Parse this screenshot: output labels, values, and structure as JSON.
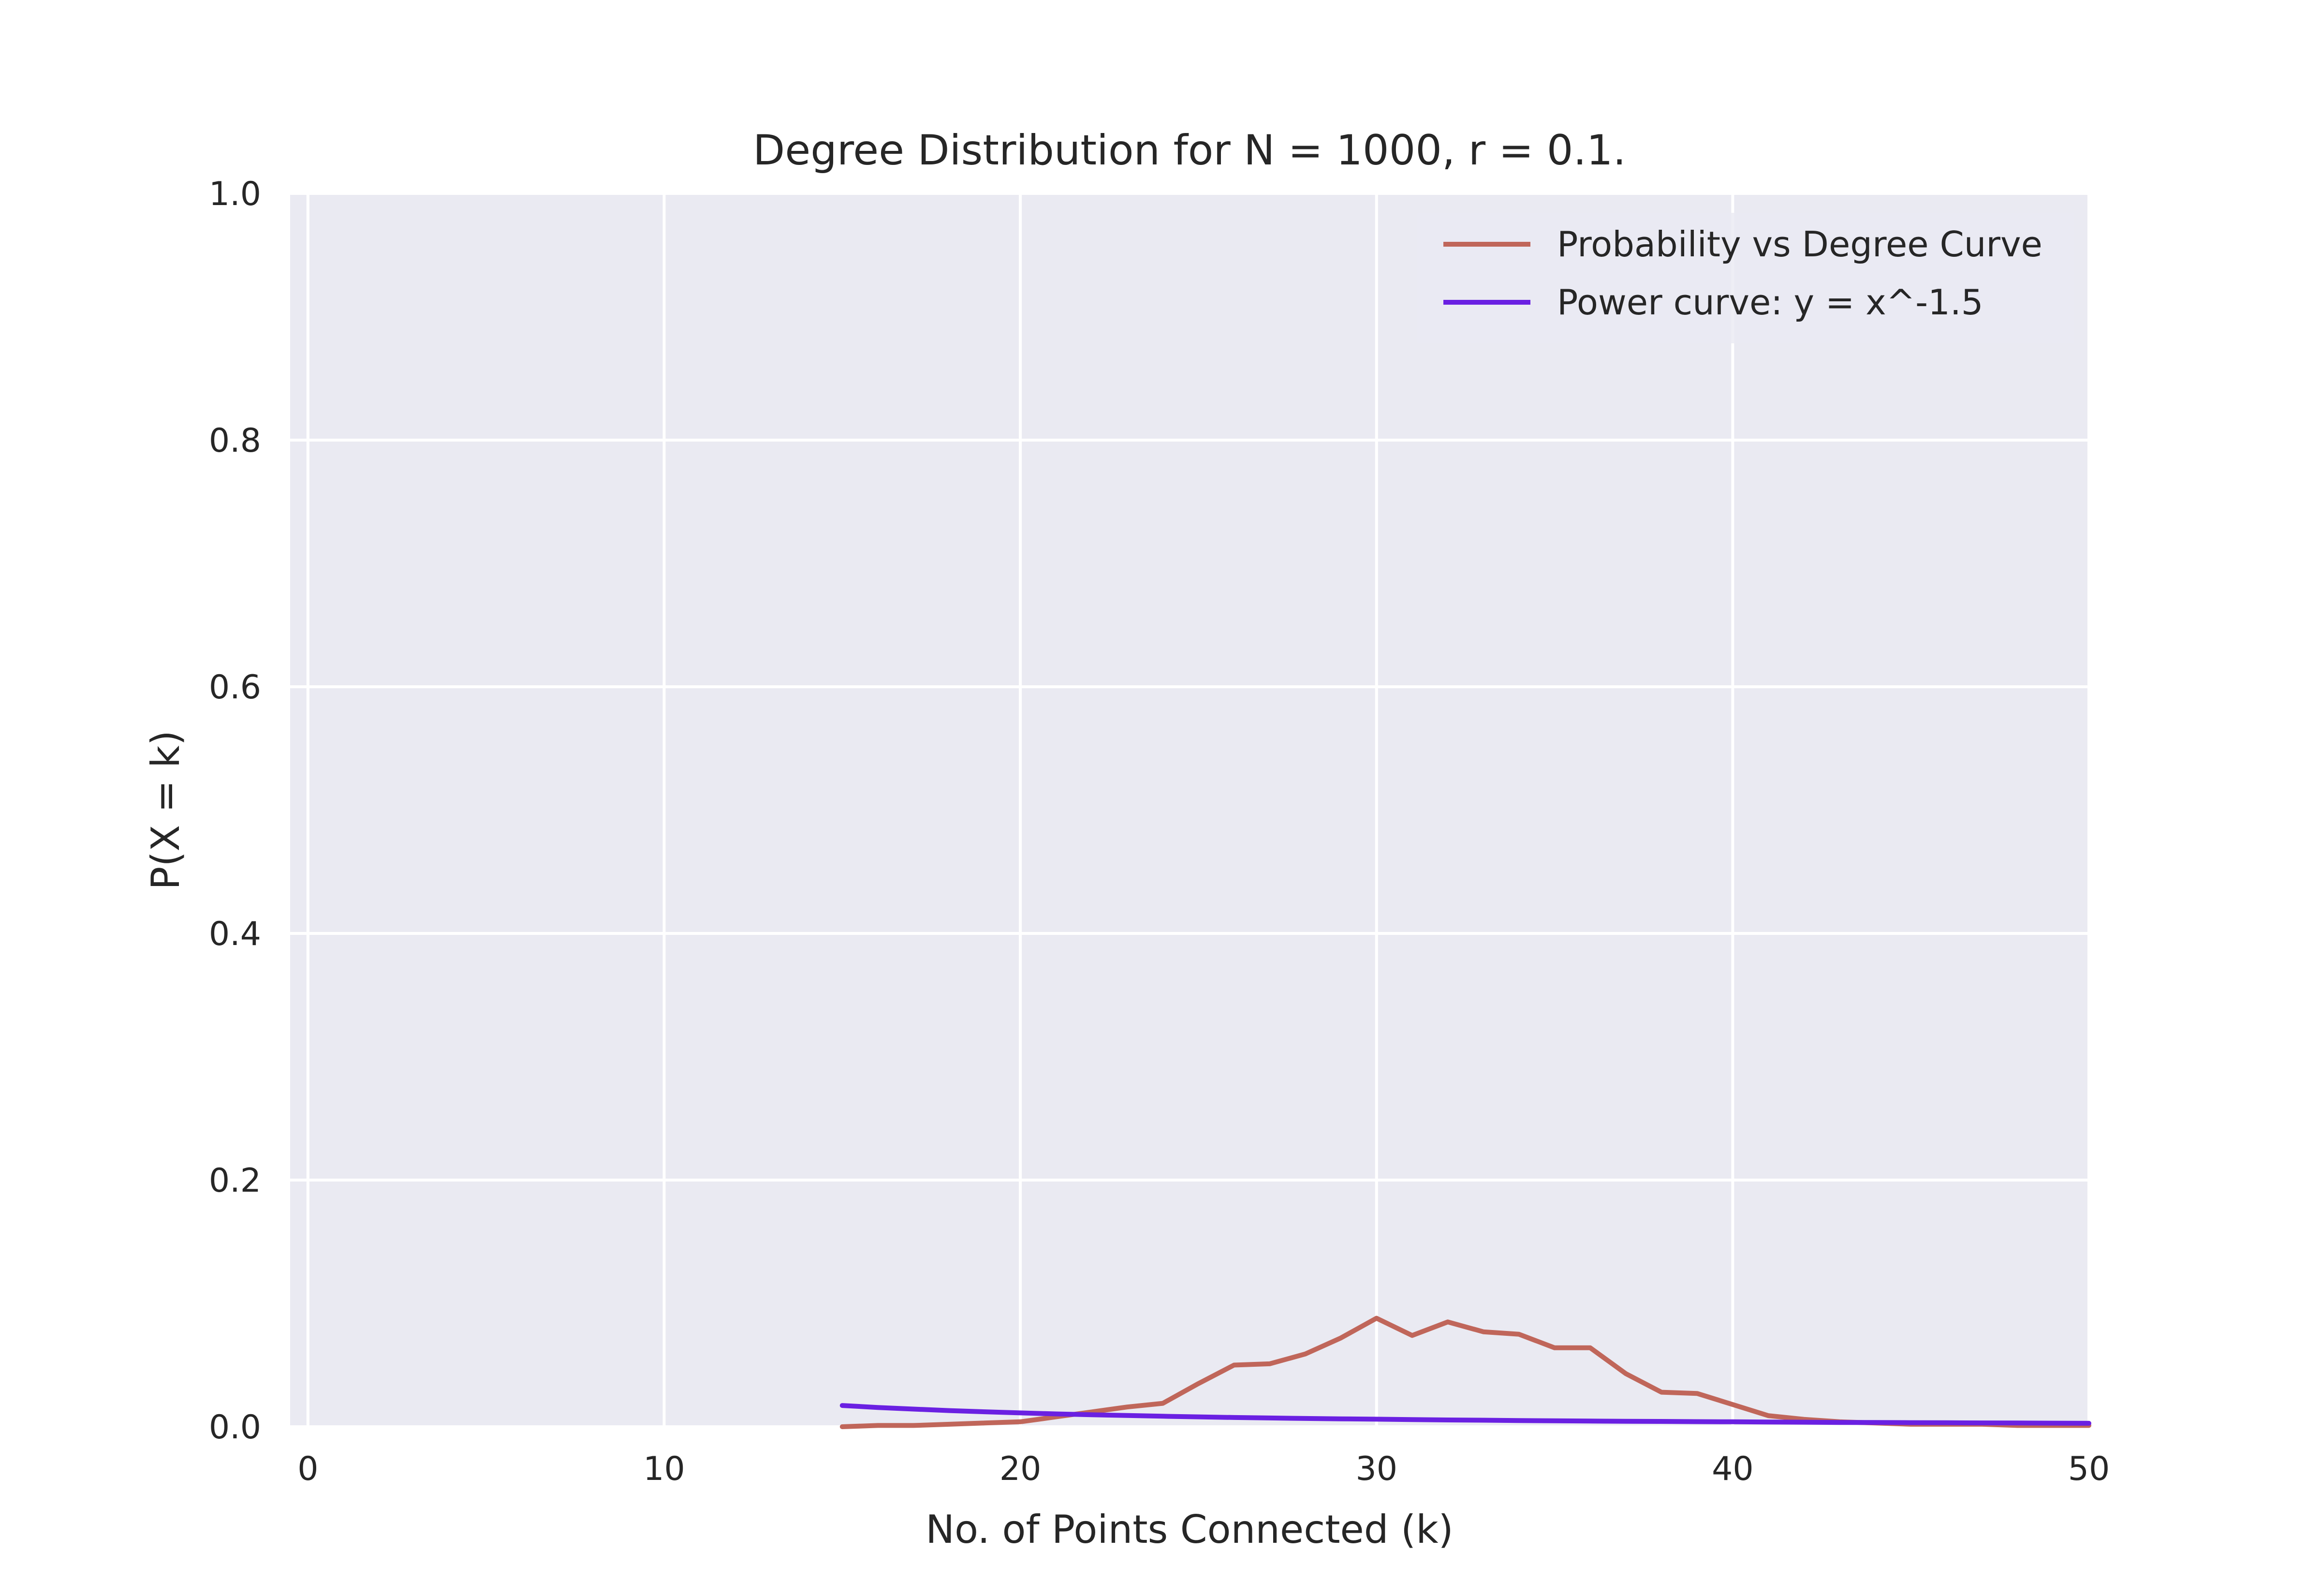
{
  "chart_data": {
    "type": "line",
    "title": "Degree Distribution for N = 1000, r = 0.1.",
    "xlabel": "No. of Points Connected (k)",
    "ylabel": "P(X = k)",
    "xlim": [
      -0.5,
      50
    ],
    "ylim": [
      0,
      1.0
    ],
    "xticks": [
      0,
      10,
      20,
      30,
      40,
      50
    ],
    "xtick_labels": [
      "0",
      "10",
      "20",
      "30",
      "40",
      "50"
    ],
    "yticks": [
      0.0,
      0.2,
      0.4,
      0.6,
      0.8,
      1.0
    ],
    "ytick_labels": [
      "0.0",
      "0.2",
      "0.4",
      "0.6",
      "0.8",
      "1.0"
    ],
    "grid": true,
    "legend_position": "top-right",
    "background": "#eaeaf2",
    "series": [
      {
        "name": "Probability vs Degree Curve",
        "color": "#c0665a",
        "x": [
          15,
          16,
          17,
          18,
          19,
          20,
          21,
          22,
          23,
          24,
          25,
          26,
          27,
          28,
          29,
          30,
          31,
          32,
          33,
          34,
          35,
          36,
          37,
          38,
          39,
          40,
          41,
          42,
          43,
          44,
          45,
          46,
          47,
          48,
          49,
          50
        ],
        "y": [
          0.0,
          0.001,
          0.001,
          0.002,
          0.003,
          0.004,
          0.008,
          0.012,
          0.016,
          0.019,
          0.035,
          0.05,
          0.051,
          0.059,
          0.072,
          0.088,
          0.074,
          0.085,
          0.077,
          0.075,
          0.064,
          0.064,
          0.043,
          0.028,
          0.027,
          0.018,
          0.009,
          0.006,
          0.004,
          0.003,
          0.002,
          0.002,
          0.002,
          0.001,
          0.001,
          0.001
        ]
      },
      {
        "name": "Power curve: y = x^-1.5",
        "color": "#6a20e2",
        "x": [
          15,
          16,
          17,
          18,
          19,
          20,
          21,
          22,
          23,
          24,
          25,
          26,
          27,
          28,
          29,
          30,
          31,
          32,
          33,
          34,
          35,
          36,
          37,
          38,
          39,
          40,
          41,
          42,
          43,
          44,
          45,
          46,
          47,
          48,
          49,
          50
        ],
        "y": [
          0.0172,
          0.0156,
          0.0143,
          0.0131,
          0.0121,
          0.0112,
          0.0104,
          0.0097,
          0.0091,
          0.0085,
          0.008,
          0.0075,
          0.0071,
          0.0067,
          0.0064,
          0.0061,
          0.0058,
          0.0055,
          0.0053,
          0.005,
          0.0048,
          0.0046,
          0.0044,
          0.0043,
          0.0041,
          0.004,
          0.0038,
          0.0037,
          0.0035,
          0.0034,
          0.0033,
          0.0032,
          0.0031,
          0.003,
          0.0029,
          0.0028
        ]
      }
    ]
  }
}
